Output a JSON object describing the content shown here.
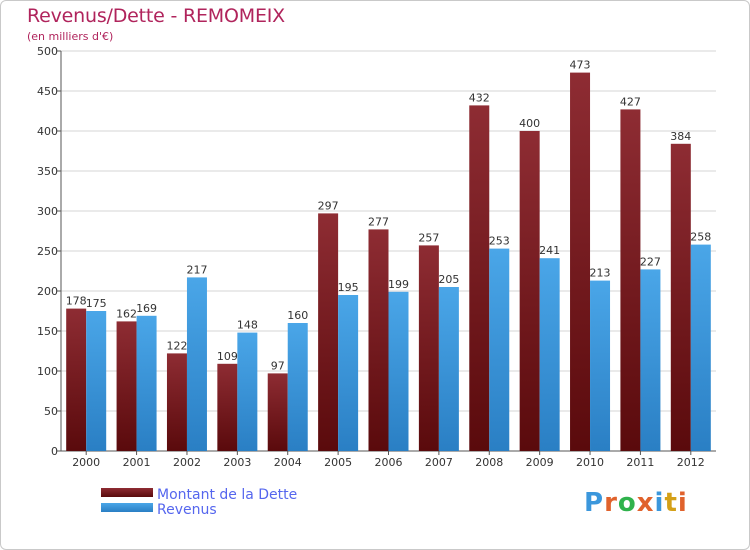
{
  "chart_data": {
    "type": "bar",
    "title": "Revenus/Dette - REMOMEIX",
    "subtitle": "(en milliers d'€)",
    "categories": [
      "2000",
      "2001",
      "2002",
      "2003",
      "2004",
      "2005",
      "2006",
      "2007",
      "2008",
      "2009",
      "2010",
      "2011",
      "2012"
    ],
    "series": [
      {
        "name": "Montant de la Dette",
        "color": "#7a1f24",
        "values": [
          178,
          162,
          122,
          109,
          97,
          297,
          277,
          257,
          432,
          400,
          473,
          427,
          384
        ]
      },
      {
        "name": "Revenus",
        "color": "#3b97dc",
        "values": [
          175,
          169,
          217,
          148,
          160,
          195,
          199,
          205,
          253,
          241,
          213,
          227,
          258
        ]
      }
    ],
    "ylim": [
      0,
      500
    ],
    "yticks": [
      0,
      50,
      100,
      150,
      200,
      250,
      300,
      350,
      400,
      450,
      500
    ],
    "grid": true,
    "legend": "bottom-left"
  },
  "logo": {
    "text": "Proxiti",
    "colors": [
      "#3b97dc",
      "#e0622c",
      "#2fb24c",
      "#e0622c",
      "#3b97dc",
      "#d4a017",
      "#e0622c"
    ]
  }
}
